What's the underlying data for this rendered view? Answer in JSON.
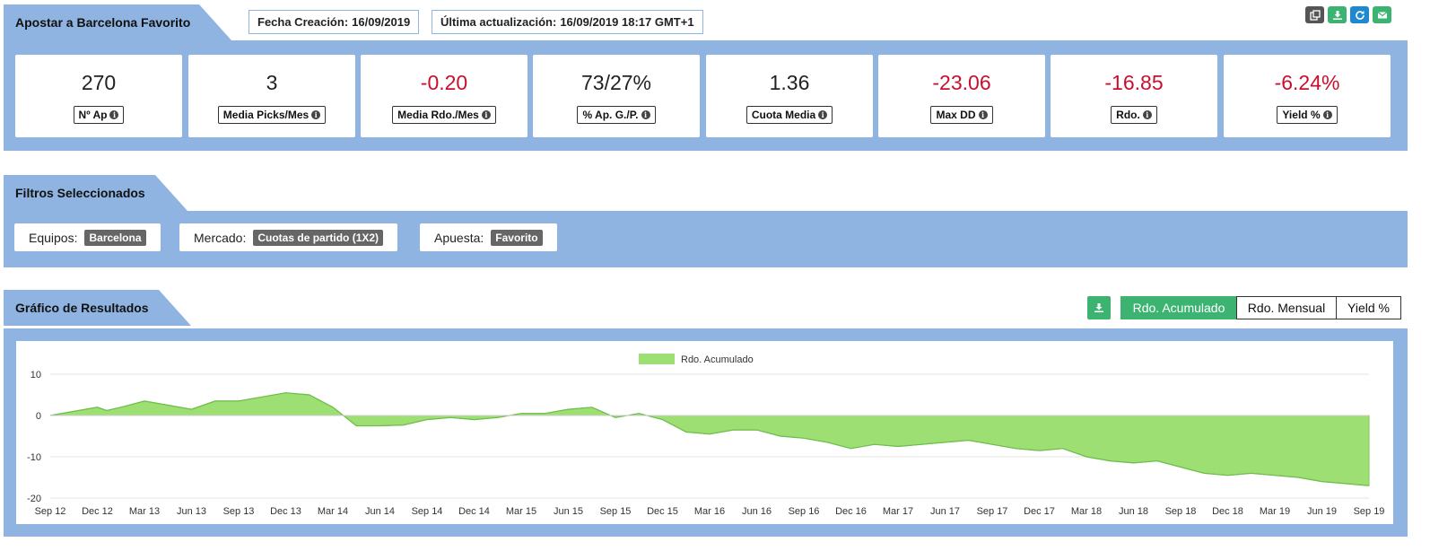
{
  "header": {
    "title": "Apostar a Barcelona Favorito",
    "fecha_creacion_label": "Fecha Creación:",
    "fecha_creacion_value": "16/09/2019",
    "ultima_act_label": "Última actualización:",
    "ultima_act_value": "16/09/2019 18:17 GMT+1",
    "toolbar_icons": [
      "copy-icon",
      "download-icon",
      "refresh-icon",
      "email-icon"
    ]
  },
  "stats": [
    {
      "value": "270",
      "label": "Nº Ap",
      "negative": false
    },
    {
      "value": "3",
      "label": "Media Picks/Mes",
      "negative": false
    },
    {
      "value": "-0.20",
      "label": "Media Rdo./Mes",
      "negative": true
    },
    {
      "value": "73/27%",
      "label": "% Ap. G./P.",
      "negative": false
    },
    {
      "value": "1.36",
      "label": "Cuota Media",
      "negative": false
    },
    {
      "value": "-23.06",
      "label": "Max DD",
      "negative": true
    },
    {
      "value": "-16.85",
      "label": "Rdo.",
      "negative": true
    },
    {
      "value": "-6.24%",
      "label": "Yield %",
      "negative": true
    }
  ],
  "filters": {
    "title": "Filtros Seleccionados",
    "items": [
      {
        "label": "Equipos:",
        "value": "Barcelona"
      },
      {
        "label": "Mercado:",
        "value": "Cuotas de partido (1X2)"
      },
      {
        "label": "Apuesta:",
        "value": "Favorito"
      }
    ]
  },
  "results": {
    "title": "Gráfico de Resultados",
    "tabs": [
      "Rdo. Acumulado",
      "Rdo. Mensual",
      "Yield %"
    ],
    "active_tab": 0
  },
  "colors": {
    "accent_blue": "#8fb4e2",
    "green": "#3cb371",
    "negative_red": "#c8102e",
    "area_fill": "#9ddf73"
  },
  "chart_data": {
    "type": "area",
    "legend": [
      "Rdo. Acumulado"
    ],
    "legend_position": "top-center",
    "grid": true,
    "ylim": [
      -20,
      10
    ],
    "yticks": [
      10,
      0,
      -10,
      -20
    ],
    "xticks": [
      "Sep 12",
      "Dec 12",
      "Mar 13",
      "Jun 13",
      "Sep 13",
      "Dec 13",
      "Mar 14",
      "Jun 14",
      "Sep 14",
      "Dec 14",
      "Mar 15",
      "Jun 15",
      "Sep 15",
      "Dec 15",
      "Mar 16",
      "Jun 16",
      "Sep 16",
      "Dec 16",
      "Mar 17",
      "Jun 17",
      "Sep 17",
      "Dec 17",
      "Mar 18",
      "Jun 18",
      "Sep 18",
      "Dec 18",
      "Mar 19",
      "Jun 19",
      "Sep 19"
    ],
    "series": [
      {
        "name": "Rdo. Acumulado",
        "x": [
          0,
          0.5,
          1.0,
          1.2,
          1.5,
          2.0,
          2.5,
          3.0,
          3.5,
          4.0,
          4.5,
          5.0,
          5.5,
          6.0,
          6.5,
          7.0,
          7.5,
          8.0,
          8.5,
          9.0,
          9.5,
          10.0,
          10.5,
          11.0,
          11.5,
          12.0,
          12.5,
          13.0,
          13.5,
          14.0,
          14.5,
          15.0,
          15.5,
          16.0,
          16.5,
          17.0,
          17.5,
          18.0,
          18.5,
          19.0,
          19.5,
          20.0,
          20.5,
          21.0,
          21.5,
          22.0,
          22.5,
          23.0,
          23.5,
          24.0,
          24.5,
          25.0,
          25.5,
          26.0,
          26.5,
          27.0,
          27.5,
          28.0
        ],
        "y": [
          0,
          1.0,
          2.0,
          1.2,
          2.0,
          3.5,
          2.5,
          1.5,
          3.5,
          3.5,
          4.5,
          5.5,
          5.0,
          2.0,
          -2.5,
          -2.5,
          -2.3,
          -1.0,
          -0.5,
          -1.0,
          -0.5,
          0.5,
          0.5,
          1.5,
          2.0,
          -0.5,
          0.5,
          -1.0,
          -4.0,
          -4.5,
          -3.5,
          -3.5,
          -5.0,
          -5.5,
          -6.5,
          -8.0,
          -7.0,
          -7.5,
          -7.0,
          -6.5,
          -6.0,
          -7.0,
          -8.0,
          -8.5,
          -8.0,
          -10.0,
          -11.0,
          -11.5,
          -11.0,
          -12.5,
          -14.0,
          -14.5,
          -14.0,
          -14.5,
          -15.0,
          -16.0,
          -16.5,
          -17.0
        ]
      }
    ]
  }
}
